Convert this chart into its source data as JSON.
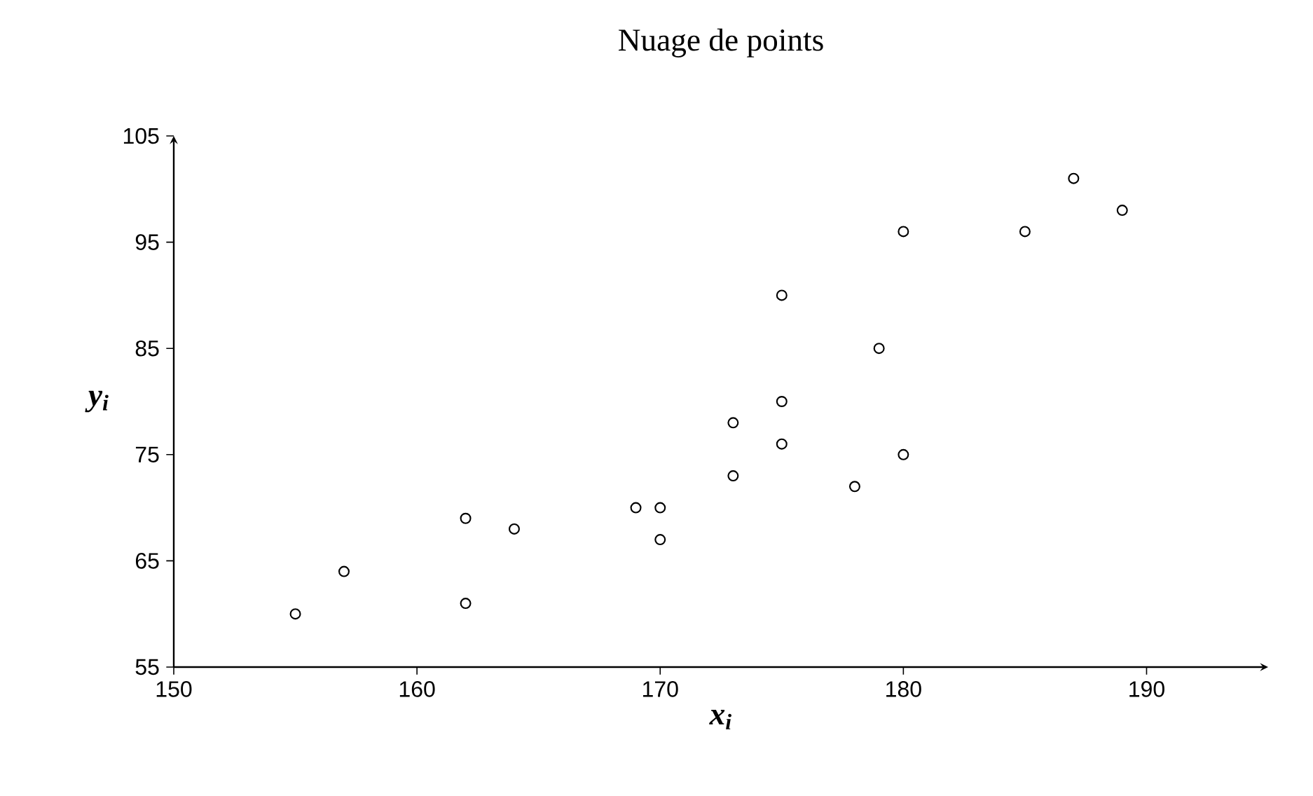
{
  "chart_data": {
    "type": "scatter",
    "title": "Nuage de points",
    "xlabel": "x$_{i}$",
    "ylabel": "y$_{i}$",
    "xlim": [
      150,
      195
    ],
    "ylim": [
      55,
      105
    ],
    "xticks": [
      150,
      160,
      170,
      180,
      190
    ],
    "yticks": [
      55,
      65,
      75,
      85,
      95,
      105
    ],
    "marker": "circle",
    "grid": false,
    "series": [
      {
        "color": "#000000",
        "x": [
          155,
          157,
          162,
          162,
          164,
          169,
          170,
          170,
          173,
          173,
          175,
          175,
          175,
          178,
          179,
          180,
          180,
          185,
          187,
          189
        ],
        "values": [
          60,
          64,
          69,
          61,
          68,
          70,
          70,
          67,
          78,
          73,
          90,
          80,
          76,
          72,
          85,
          96,
          75,
          96,
          101,
          98
        ]
      }
    ]
  }
}
